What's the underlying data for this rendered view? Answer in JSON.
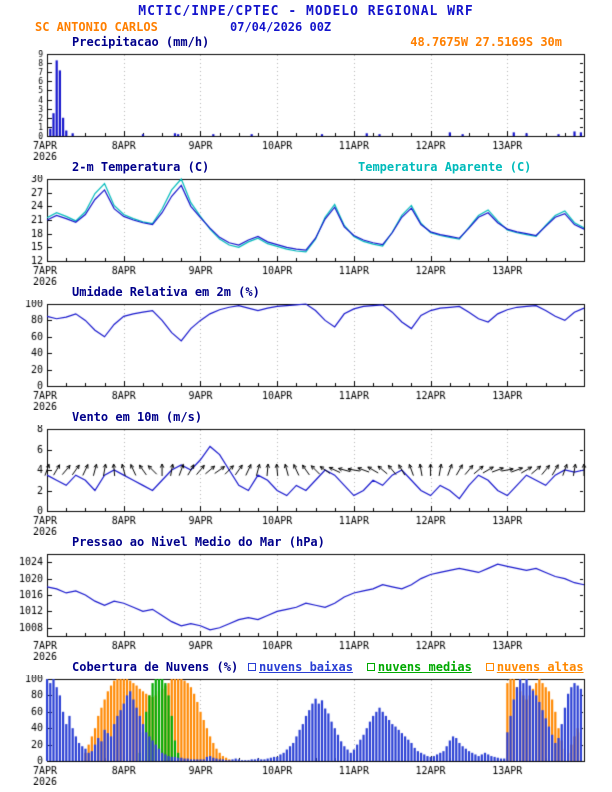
{
  "header": {
    "title": "MCTIC/INPE/CPTEC - MODELO REGIONAL WRF",
    "station": "SC ANTONIO CARLOS",
    "datetime": "07/04/2026 00Z",
    "location": "48.7675W 27.5169S 30m"
  },
  "colors": {
    "accent_blue": "#1414cc",
    "accent_orange": "#ff7f00",
    "title_navy": "#00008b",
    "apparent_cyan": "#00bbbb",
    "cloud_low_blue": "#2a3fd4",
    "cloud_mid_green": "#00aa00",
    "cloud_high_orange": "#ff8800"
  },
  "x_axis": {
    "hours": 168,
    "start_label_sub": "2026",
    "ticks": [
      {
        "h": 0,
        "label": "7APR",
        "sub": "2026"
      },
      {
        "h": 24,
        "label": "8APR"
      },
      {
        "h": 48,
        "label": "9APR"
      },
      {
        "h": 72,
        "label": "10APR"
      },
      {
        "h": 96,
        "label": "11APR"
      },
      {
        "h": 120,
        "label": "12APR"
      },
      {
        "h": 144,
        "label": "13APR"
      }
    ]
  },
  "chart_data": [
    {
      "id": "precipitation",
      "type": "bar",
      "title": "Precipitacao (mm/h)",
      "ylabel": "mm/h",
      "ylim": [
        0,
        9
      ],
      "yticks": [
        0,
        1,
        2,
        3,
        4,
        5,
        6,
        7,
        8,
        9
      ],
      "small_yticks": true,
      "color": "#1414cc",
      "x_unit": "hours since 07/04/2026 00Z",
      "points": [
        [
          1,
          0.8
        ],
        [
          2,
          2.5
        ],
        [
          3,
          8.3
        ],
        [
          4,
          7.2
        ],
        [
          5,
          2.0
        ],
        [
          6,
          0.6
        ],
        [
          8,
          0.3
        ],
        [
          30,
          0.2
        ],
        [
          40,
          0.3
        ],
        [
          41,
          0.2
        ],
        [
          52,
          0.2
        ],
        [
          64,
          0.2
        ],
        [
          86,
          0.2
        ],
        [
          100,
          0.3
        ],
        [
          104,
          0.2
        ],
        [
          126,
          0.4
        ],
        [
          130,
          0.2
        ],
        [
          146,
          0.4
        ],
        [
          150,
          0.3
        ],
        [
          160,
          0.2
        ],
        [
          165,
          0.5
        ],
        [
          167,
          0.4
        ]
      ]
    },
    {
      "id": "temperature",
      "type": "line",
      "title": "2-m Temperatura (C)",
      "ylim": [
        12,
        30
      ],
      "yticks": [
        12,
        15,
        18,
        21,
        24,
        27,
        30
      ],
      "x_step": 3,
      "series": [
        {
          "name": "2-m Temperatura (C)",
          "color": "#1414cc",
          "values": [
            21.0,
            22.0,
            21.3,
            20.5,
            22.2,
            25.5,
            27.6,
            23.5,
            21.8,
            21.0,
            20.4,
            20.0,
            22.6,
            26.2,
            28.6,
            24.0,
            21.5,
            19.2,
            17.2,
            16.0,
            15.5,
            16.6,
            17.4,
            16.2,
            15.6,
            15.0,
            14.6,
            14.4,
            17.0,
            21.2,
            23.8,
            19.5,
            17.6,
            16.6,
            16.0,
            15.6,
            18.2,
            21.6,
            23.6,
            20.0,
            18.4,
            17.8,
            17.4,
            17.0,
            19.2,
            21.6,
            22.6,
            20.4,
            19.0,
            18.4,
            18.0,
            17.6,
            19.6,
            21.6,
            22.4,
            20.0,
            19.0
          ]
        },
        {
          "name": "Temperatura Aparente (C)",
          "color": "#00bbbb",
          "values": [
            21.5,
            22.6,
            21.8,
            20.8,
            22.8,
            26.8,
            29.0,
            24.2,
            22.2,
            21.3,
            20.6,
            20.2,
            23.4,
            27.6,
            30.0,
            24.8,
            21.8,
            19.0,
            16.8,
            15.5,
            15.0,
            16.2,
            17.0,
            15.8,
            15.2,
            14.6,
            14.2,
            14.0,
            16.8,
            21.6,
            24.4,
            19.8,
            17.4,
            16.3,
            15.7,
            15.3,
            18.3,
            22.0,
            24.2,
            20.3,
            18.2,
            17.6,
            17.2,
            16.8,
            19.4,
            22.0,
            23.2,
            20.8,
            18.8,
            18.2,
            17.8,
            17.4,
            19.8,
            22.0,
            23.0,
            20.4,
            19.3
          ]
        }
      ]
    },
    {
      "id": "humidity",
      "type": "line",
      "title": "Umidade Relativa em 2m (%)",
      "ylim": [
        0,
        100
      ],
      "yticks": [
        0,
        20,
        40,
        60,
        80,
        100
      ],
      "x_step": 3,
      "series": [
        {
          "name": "Umidade Relativa em 2m",
          "color": "#1414cc",
          "values": [
            85,
            82,
            84,
            88,
            80,
            68,
            60,
            75,
            85,
            88,
            90,
            92,
            80,
            65,
            55,
            70,
            80,
            88,
            93,
            96,
            98,
            95,
            92,
            95,
            97,
            98,
            99,
            100,
            92,
            80,
            72,
            88,
            94,
            97,
            98,
            99,
            90,
            78,
            70,
            86,
            92,
            95,
            96,
            97,
            90,
            82,
            78,
            88,
            93,
            96,
            97,
            98,
            92,
            85,
            80,
            90,
            95
          ]
        }
      ]
    },
    {
      "id": "wind",
      "type": "line",
      "title": "Vento em 10m (m/s)",
      "ylim": [
        0,
        8
      ],
      "yticks": [
        0,
        2,
        4,
        6,
        8
      ],
      "x_step": 3,
      "series": [
        {
          "name": "Vento em 10m",
          "color": "#1414cc",
          "values": [
            3.5,
            3.0,
            2.5,
            3.5,
            3.0,
            2.0,
            3.5,
            4.0,
            3.5,
            3.0,
            2.5,
            2.0,
            3.0,
            4.0,
            4.5,
            4.0,
            5.0,
            6.3,
            5.5,
            4.0,
            2.5,
            2.0,
            3.5,
            3.0,
            2.0,
            1.5,
            2.5,
            2.0,
            3.0,
            4.0,
            3.5,
            2.5,
            1.5,
            2.0,
            3.0,
            2.5,
            3.5,
            4.0,
            3.0,
            2.0,
            1.5,
            2.5,
            2.0,
            1.2,
            2.5,
            3.5,
            3.0,
            2.0,
            1.5,
            2.5,
            3.5,
            3.0,
            2.5,
            3.5,
            4.0,
            3.8,
            4.0
          ]
        }
      ],
      "arrows": {
        "y": 4,
        "color": "#000000",
        "x_step": 3,
        "dir_deg": [
          20,
          30,
          40,
          35,
          25,
          15,
          10,
          355,
          345,
          335,
          325,
          315,
          0,
          10,
          20,
          30,
          40,
          50,
          55,
          45,
          35,
          25,
          15,
          5,
          355,
          345,
          335,
          325,
          315,
          305,
          295,
          285,
          280,
          290,
          300,
          310,
          320,
          330,
          340,
          350,
          0,
          10,
          20,
          30,
          40,
          50,
          60,
          70,
          80,
          70,
          60,
          50,
          40,
          30,
          20,
          10,
          0
        ]
      }
    },
    {
      "id": "pressure",
      "type": "line",
      "title": "Pressao ao Nivel Medio do Mar (hPa)",
      "ylim": [
        1006,
        1026
      ],
      "yticks": [
        1008,
        1012,
        1016,
        1020,
        1024
      ],
      "x_step": 3,
      "series": [
        {
          "name": "Pressao ao Nivel Medio do Mar",
          "color": "#1414cc",
          "values": [
            1018.0,
            1017.5,
            1016.5,
            1017.0,
            1016.0,
            1014.5,
            1013.5,
            1014.5,
            1014.0,
            1013.0,
            1012.0,
            1012.5,
            1011.0,
            1009.5,
            1008.5,
            1009.0,
            1008.5,
            1007.5,
            1008.0,
            1009.0,
            1010.0,
            1010.5,
            1010.0,
            1011.0,
            1012.0,
            1012.5,
            1013.0,
            1014.0,
            1013.5,
            1013.0,
            1014.0,
            1015.5,
            1016.5,
            1017.0,
            1017.5,
            1018.5,
            1018.0,
            1017.5,
            1018.5,
            1020.0,
            1021.0,
            1021.5,
            1022.0,
            1022.5,
            1022.0,
            1021.5,
            1022.5,
            1023.5,
            1023.0,
            1022.5,
            1022.0,
            1022.5,
            1021.5,
            1020.5,
            1020.0,
            1019.0,
            1018.5
          ]
        }
      ]
    },
    {
      "id": "clouds",
      "type": "bar-multi",
      "title": "Cobertura de Nuvens (%)",
      "ylim": [
        0,
        100
      ],
      "yticks": [
        0,
        20,
        40,
        60,
        80,
        100
      ],
      "x_unit": "hourly",
      "series": [
        {
          "name": "nuvens baixas",
          "color": "#2a3fd4",
          "values": [
            100,
            95,
            100,
            90,
            80,
            60,
            45,
            55,
            40,
            30,
            22,
            18,
            15,
            10,
            12,
            20,
            28,
            24,
            38,
            34,
            30,
            45,
            55,
            62,
            70,
            80,
            85,
            75,
            65,
            55,
            45,
            35,
            30,
            25,
            20,
            15,
            10,
            8,
            6,
            5,
            5,
            4,
            4,
            3,
            3,
            2,
            2,
            2,
            2,
            2,
            5,
            6,
            4,
            3,
            2,
            2,
            1,
            1,
            2,
            3,
            2,
            1,
            1,
            1,
            2,
            2,
            3,
            2,
            2,
            3,
            4,
            5,
            5,
            8,
            10,
            14,
            18,
            22,
            30,
            38,
            45,
            55,
            62,
            70,
            76,
            70,
            74,
            64,
            58,
            48,
            40,
            32,
            24,
            18,
            14,
            10,
            14,
            20,
            26,
            32,
            40,
            48,
            55,
            60,
            65,
            60,
            55,
            50,
            45,
            42,
            38,
            34,
            30,
            26,
            22,
            16,
            12,
            10,
            8,
            6,
            5,
            6,
            8,
            10,
            12,
            18,
            25,
            30,
            28,
            22,
            18,
            15,
            12,
            10,
            8,
            6,
            8,
            10,
            8,
            6,
            5,
            4,
            3,
            3,
            35,
            55,
            75,
            90,
            100,
            95,
            100,
            92,
            86,
            80,
            72,
            62,
            52,
            42,
            32,
            22,
            28,
            45,
            65,
            82,
            90,
            95,
            92,
            88
          ]
        },
        {
          "name": "nuvens medias",
          "color": "#00aa00",
          "values": [
            0,
            0,
            0,
            0,
            0,
            0,
            0,
            0,
            0,
            0,
            0,
            0,
            0,
            0,
            0,
            0,
            0,
            0,
            0,
            0,
            0,
            0,
            0,
            0,
            0,
            0,
            0,
            0,
            0,
            10,
            35,
            60,
            80,
            95,
            100,
            100,
            100,
            95,
            80,
            55,
            25,
            10,
            0,
            0,
            0,
            0,
            0,
            0,
            0,
            0,
            0,
            0,
            0,
            0,
            0,
            0,
            0,
            0,
            0,
            0,
            0,
            0,
            0,
            0,
            0,
            0,
            0,
            0,
            0,
            0,
            0,
            0,
            0,
            0,
            0,
            0,
            0,
            0,
            0,
            0,
            0,
            0,
            0,
            0,
            0,
            0,
            0,
            0,
            0,
            0,
            0,
            0,
            0,
            0,
            0,
            0,
            0,
            0,
            0,
            0,
            0,
            0,
            0,
            0,
            0,
            0,
            0,
            0,
            0,
            0,
            0,
            0,
            0,
            0,
            0,
            0,
            0,
            0,
            0,
            0,
            0,
            0,
            0,
            0,
            0,
            0,
            0,
            0,
            0,
            0,
            0,
            0,
            0,
            0,
            0,
            0,
            0,
            0,
            0,
            0,
            0,
            0,
            0,
            0,
            0,
            0,
            0,
            0,
            0,
            0,
            0,
            0,
            0,
            0,
            0,
            0,
            0,
            0,
            0,
            0,
            0,
            0,
            0,
            0,
            0,
            0,
            0,
            0
          ]
        },
        {
          "name": "nuvens altas",
          "color": "#ff8800",
          "values": [
            0,
            0,
            0,
            0,
            0,
            0,
            0,
            0,
            0,
            0,
            0,
            0,
            10,
            20,
            30,
            40,
            55,
            65,
            75,
            85,
            92,
            98,
            100,
            100,
            100,
            100,
            98,
            95,
            92,
            88,
            85,
            82,
            80,
            78,
            80,
            85,
            88,
            92,
            95,
            100,
            100,
            100,
            100,
            98,
            95,
            90,
            82,
            72,
            60,
            50,
            40,
            30,
            22,
            15,
            10,
            6,
            4,
            2,
            0,
            0,
            0,
            0,
            0,
            0,
            0,
            0,
            0,
            0,
            0,
            0,
            0,
            0,
            0,
            0,
            0,
            0,
            0,
            0,
            0,
            0,
            0,
            0,
            0,
            0,
            0,
            0,
            0,
            0,
            0,
            0,
            0,
            0,
            0,
            0,
            0,
            0,
            0,
            0,
            0,
            0,
            0,
            0,
            0,
            0,
            0,
            0,
            0,
            0,
            0,
            0,
            0,
            0,
            0,
            0,
            0,
            0,
            0,
            0,
            0,
            0,
            0,
            0,
            0,
            0,
            0,
            0,
            0,
            0,
            0,
            0,
            0,
            0,
            0,
            0,
            0,
            0,
            0,
            0,
            0,
            0,
            0,
            0,
            0,
            0,
            95,
            100,
            100,
            90,
            85,
            80,
            75,
            80,
            88,
            95,
            100,
            95,
            90,
            85,
            75,
            60,
            40,
            25,
            15,
            10,
            20,
            30,
            40,
            35
          ]
        }
      ]
    }
  ]
}
